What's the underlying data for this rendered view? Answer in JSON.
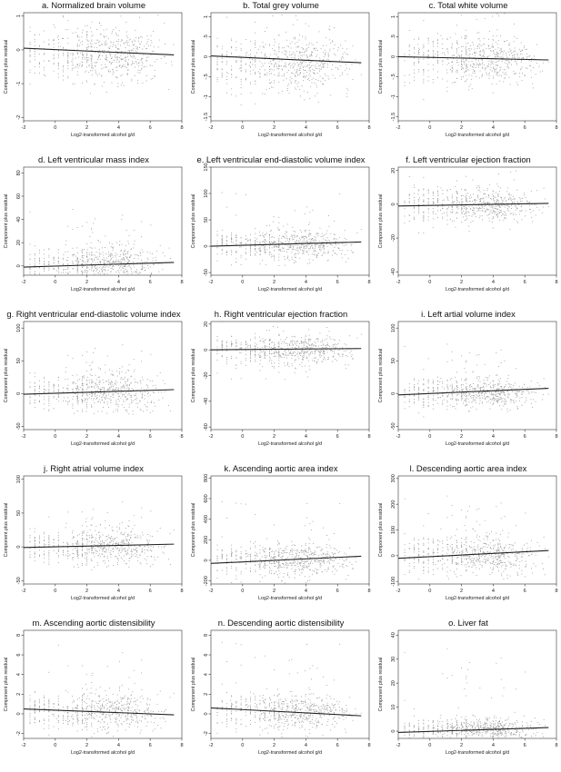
{
  "chart_data": [
    {
      "type": "scatter",
      "title": "a. Normalized brain volume",
      "xlabel": "Log2-transformed alcohol g/d",
      "ylabel": "Component plus residual",
      "xticks": [
        "-2",
        "0",
        "2",
        "4",
        "6",
        "8"
      ],
      "yticks": [
        "-2",
        "-1",
        "0",
        "1"
      ],
      "xlim": [
        -2,
        8
      ],
      "ylim": [
        -2.1,
        1.1
      ],
      "cloud": {
        "center": -0.15,
        "spread": 0.4,
        "outlier_extent": 1.7
      },
      "fit_line": {
        "x": [
          -2,
          7.5
        ],
        "y": [
          0.05,
          -0.15
        ]
      }
    },
    {
      "type": "scatter",
      "title": "b. Total grey volume",
      "xlabel": "Log2-transformed alcohol g/d",
      "ylabel": "Component plus residual",
      "xticks": [
        "-2",
        "0",
        "2",
        "4",
        "6",
        "8"
      ],
      "yticks": [
        "-1.5",
        "-1",
        "-.5",
        "0",
        ".5",
        "1"
      ],
      "xlim": [
        -2,
        8
      ],
      "ylim": [
        -1.6,
        1.1
      ],
      "cloud": {
        "center": -0.15,
        "spread": 0.35,
        "outlier_extent": 1.4
      },
      "fit_line": {
        "x": [
          -2,
          7.5
        ],
        "y": [
          0.02,
          -0.15
        ]
      }
    },
    {
      "type": "scatter",
      "title": "c. Total white volume",
      "xlabel": "Log2-transformed alcohol g/d",
      "ylabel": "Component plus residual",
      "xticks": [
        "-2",
        "0",
        "2",
        "4",
        "6",
        "8"
      ],
      "yticks": [
        "-1.5",
        "-1",
        "-.5",
        "0",
        ".5",
        "1"
      ],
      "xlim": [
        -2,
        8
      ],
      "ylim": [
        -1.6,
        1.1
      ],
      "cloud": {
        "center": -0.05,
        "spread": 0.3,
        "outlier_extent": 1.3
      },
      "fit_line": {
        "x": [
          -2,
          7.5
        ],
        "y": [
          0.0,
          -0.08
        ]
      }
    },
    {
      "type": "scatter",
      "title": "d. Left ventricular mass index",
      "xlabel": "Log2-transformed alcohol g/d",
      "ylabel": "Component plus residual",
      "xticks": [
        "-2",
        "0",
        "2",
        "4",
        "6",
        "8"
      ],
      "yticks": [
        "0",
        "20",
        "40",
        "60",
        "80"
      ],
      "xlim": [
        -2,
        8
      ],
      "ylim": [
        -8,
        85
      ],
      "cloud": {
        "center": 2,
        "spread": 7,
        "outlier_extent": 35
      },
      "fit_line": {
        "x": [
          -2,
          7.5
        ],
        "y": [
          -1,
          3
        ]
      }
    },
    {
      "type": "scatter",
      "title": "e. Left ventricular end-diastolic volume index",
      "xlabel": "Log2-transformed alcohol g/d",
      "ylabel": "Component plus residual",
      "xticks": [
        "-2",
        "0",
        "2",
        "4",
        "6",
        "8"
      ],
      "yticks": [
        "-50",
        "0",
        "50",
        "100",
        "150"
      ],
      "xlim": [
        -2,
        8
      ],
      "ylim": [
        -55,
        150
      ],
      "cloud": {
        "center": 4,
        "spread": 14,
        "outlier_extent": 70
      },
      "fit_line": {
        "x": [
          -2,
          7.5
        ],
        "y": [
          0,
          8
        ]
      }
    },
    {
      "type": "scatter",
      "title": "f. Left ventricular ejection fraction",
      "xlabel": "Log2-transformed alcohol g/d",
      "ylabel": "Component plus residual",
      "xticks": [
        "-2",
        "0",
        "2",
        "4",
        "6",
        "8"
      ],
      "yticks": [
        "-40",
        "-20",
        "0",
        "20"
      ],
      "xlim": [
        -2,
        8
      ],
      "ylim": [
        -42,
        22
      ],
      "cloud": {
        "center": 0,
        "spread": 5,
        "outlier_extent": 30
      },
      "fit_line": {
        "x": [
          -2,
          7.5
        ],
        "y": [
          -1,
          0.5
        ]
      }
    },
    {
      "type": "scatter",
      "title": "g. Right ventricular end-diastolic volume index",
      "xlabel": "Log2-transformed alcohol g/d",
      "ylabel": "Component plus residual",
      "xticks": [
        "-2",
        "0",
        "2",
        "4",
        "6",
        "8"
      ],
      "yticks": [
        "-50",
        "0",
        "50",
        "100"
      ],
      "xlim": [
        -2,
        8
      ],
      "ylim": [
        -55,
        110
      ],
      "cloud": {
        "center": 3,
        "spread": 13,
        "outlier_extent": 60
      },
      "fit_line": {
        "x": [
          -2,
          7.5
        ],
        "y": [
          -1,
          6
        ]
      }
    },
    {
      "type": "scatter",
      "title": "h. Right ventricular ejection fraction",
      "xlabel": "Log2-transformed alcohol g/d",
      "ylabel": "Component plus residual",
      "xticks": [
        "-2",
        "0",
        "2",
        "4",
        "6",
        "8"
      ],
      "yticks": [
        "-60",
        "-40",
        "-20",
        "0",
        "20"
      ],
      "xlim": [
        -2,
        8
      ],
      "ylim": [
        -62,
        22
      ],
      "cloud": {
        "center": 0,
        "spread": 6,
        "outlier_extent": 40
      },
      "fit_line": {
        "x": [
          -2,
          7.5
        ],
        "y": [
          0,
          1
        ]
      }
    },
    {
      "type": "scatter",
      "title": "i. Left artial volume index",
      "xlabel": "Log2-transformed alcohol g/d",
      "ylabel": "Component plus residual",
      "xticks": [
        "-2",
        "0",
        "2",
        "4",
        "6",
        "8"
      ],
      "yticks": [
        "-50",
        "0",
        "50",
        "100"
      ],
      "xlim": [
        -2,
        8
      ],
      "ylim": [
        -55,
        110
      ],
      "cloud": {
        "center": 2,
        "spread": 11,
        "outlier_extent": 55
      },
      "fit_line": {
        "x": [
          -2,
          7.5
        ],
        "y": [
          -2,
          8
        ]
      }
    },
    {
      "type": "scatter",
      "title": "j. Right atrial volume index",
      "xlabel": "Log2-transformed alcohol g/d",
      "ylabel": "Component plus residual",
      "xticks": [
        "-2",
        "0",
        "2",
        "4",
        "6",
        "8"
      ],
      "yticks": [
        "-50",
        "0",
        "50",
        "100"
      ],
      "xlim": [
        -2,
        8
      ],
      "ylim": [
        -55,
        105
      ],
      "cloud": {
        "center": 1,
        "spread": 12,
        "outlier_extent": 55
      },
      "fit_line": {
        "x": [
          -2,
          7.5
        ],
        "y": [
          -1,
          4
        ]
      }
    },
    {
      "type": "scatter",
      "title": "k. Ascending aortic area index",
      "xlabel": "Log2-transformed alcohol g/d",
      "ylabel": "Component plus residual",
      "xticks": [
        "-2",
        "0",
        "2",
        "4",
        "6",
        "8"
      ],
      "yticks": [
        "-200",
        "0",
        "200",
        "400",
        "600",
        "800"
      ],
      "xlim": [
        -2,
        8
      ],
      "ylim": [
        -230,
        820
      ],
      "cloud": {
        "center": 10,
        "spread": 80,
        "outlier_extent": 400
      },
      "fit_line": {
        "x": [
          -2,
          7.5
        ],
        "y": [
          -30,
          40
        ]
      }
    },
    {
      "type": "scatter",
      "title": "l. Descending aortic area index",
      "xlabel": "Log2-transformed alcohol g/d",
      "ylabel": "Component plus residual",
      "xticks": [
        "-2",
        "0",
        "2",
        "4",
        "6",
        "8"
      ],
      "yticks": [
        "-100",
        "0",
        "100",
        "200",
        "300"
      ],
      "xlim": [
        -2,
        8
      ],
      "ylim": [
        -110,
        310
      ],
      "cloud": {
        "center": 5,
        "spread": 35,
        "outlier_extent": 170
      },
      "fit_line": {
        "x": [
          -2,
          7.5
        ],
        "y": [
          -10,
          20
        ]
      }
    },
    {
      "type": "scatter",
      "title": "m. Ascending aortic distensibility",
      "xlabel": "Log2-transformed alcohol g/d",
      "ylabel": "Component plus residual",
      "xticks": [
        "-2",
        "0",
        "2",
        "4",
        "6",
        "8"
      ],
      "yticks": [
        "-2",
        "0",
        "2",
        "4",
        "6",
        "8"
      ],
      "xlim": [
        -2,
        8
      ],
      "ylim": [
        -2.5,
        8.5
      ],
      "cloud": {
        "center": 0.3,
        "spread": 0.9,
        "outlier_extent": 5
      },
      "fit_line": {
        "x": [
          -2,
          7.5
        ],
        "y": [
          0.5,
          -0.1
        ]
      }
    },
    {
      "type": "scatter",
      "title": "n. Descending aortic distensibility",
      "xlabel": "Log2-transformed alcohol g/d",
      "ylabel": "Component plus residual",
      "xticks": [
        "-2",
        "0",
        "2",
        "4",
        "6",
        "8"
      ],
      "yticks": [
        "-2",
        "0",
        "2",
        "4",
        "6",
        "8"
      ],
      "xlim": [
        -2,
        8
      ],
      "ylim": [
        -2.5,
        8.5
      ],
      "cloud": {
        "center": 0.3,
        "spread": 0.9,
        "outlier_extent": 5
      },
      "fit_line": {
        "x": [
          -2,
          7.5
        ],
        "y": [
          0.6,
          -0.2
        ]
      }
    },
    {
      "type": "scatter",
      "title": "o. Liver fat",
      "xlabel": "Log2-transformed alcohol g/d",
      "ylabel": "Component plus residual",
      "xticks": [
        "-2",
        "0",
        "2",
        "4",
        "6",
        "8"
      ],
      "yticks": [
        "0",
        "10",
        "20",
        "30",
        "40"
      ],
      "xlim": [
        -2,
        8
      ],
      "ylim": [
        -3,
        42
      ],
      "cloud": {
        "center": 1,
        "spread": 2,
        "outlier_extent": 25
      },
      "fit_line": {
        "x": [
          -2,
          7.5
        ],
        "y": [
          -0.5,
          1.5
        ]
      }
    }
  ],
  "style": {
    "point_color": "#9a9a9a",
    "line_color": "#222222",
    "axis_color": "#333333",
    "background": "#ffffff"
  }
}
